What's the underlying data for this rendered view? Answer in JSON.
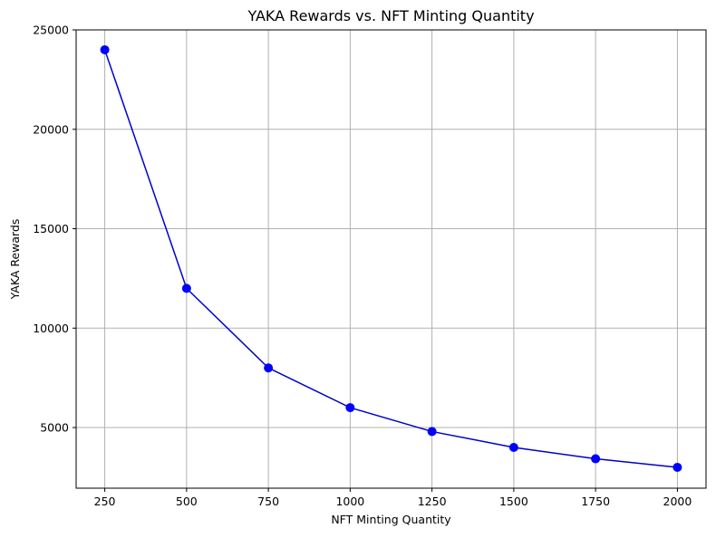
{
  "chart_data": {
    "type": "line",
    "title": "YAKA Rewards vs. NFT Minting Quantity",
    "xlabel": "NFT Minting Quantity",
    "ylabel": "YAKA Rewards",
    "x": [
      250,
      500,
      750,
      1000,
      1250,
      1500,
      1750,
      2000
    ],
    "series": [
      {
        "name": "YAKA Rewards",
        "values": [
          24000,
          12000,
          8000,
          6000,
          4800,
          4000,
          3429,
          3000
        ],
        "color": "#0000ff",
        "marker": "circle"
      }
    ],
    "x_ticks": [
      250,
      500,
      750,
      1000,
      1250,
      1500,
      1750,
      2000
    ],
    "y_ticks": [
      5000,
      10000,
      15000,
      20000,
      25000
    ],
    "xlim": [
      162.5,
      2087.5
    ],
    "ylim": [
      1950,
      25000
    ],
    "grid": true,
    "line_color": "#0000cc",
    "grid_color": "#b0b0b0"
  }
}
